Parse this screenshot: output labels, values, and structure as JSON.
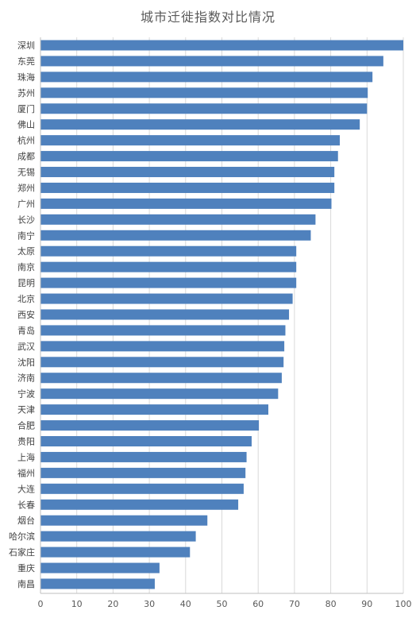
{
  "chart_data": {
    "type": "bar",
    "orientation": "horizontal",
    "title": "城市迁徙指数对比情况",
    "xlabel": "",
    "ylabel": "",
    "xlim": [
      0,
      100
    ],
    "ticks": [
      "0",
      "10",
      "20",
      "30",
      "40",
      "50",
      "60",
      "70",
      "80",
      "90",
      "100"
    ],
    "grid": true,
    "bar_color": "#4f81bd",
    "categories": [
      "深圳",
      "东莞",
      "珠海",
      "苏州",
      "厦门",
      "佛山",
      "杭州",
      "成都",
      "无锡",
      "郑州",
      "广州",
      "长沙",
      "南宁",
      "太原",
      "南京",
      "昆明",
      "北京",
      "西安",
      "青岛",
      "武汉",
      "沈阳",
      "济南",
      "宁波",
      "天津",
      "合肥",
      "贵阳",
      "上海",
      "福州",
      "大连",
      "长春",
      "烟台",
      "哈尔滨",
      "石家庄",
      "重庆",
      "南昌"
    ],
    "values": [
      100,
      94.5,
      91.5,
      90.2,
      90,
      88,
      82.5,
      82,
      81,
      81,
      80.2,
      75.8,
      74.5,
      70.5,
      70.5,
      70.5,
      69.5,
      68.5,
      67.5,
      67.2,
      67,
      66.5,
      65.5,
      62.8,
      60.2,
      58.2,
      56.8,
      56.5,
      56,
      54.5,
      46,
      42.8,
      41.2,
      32.8,
      31.5
    ]
  }
}
